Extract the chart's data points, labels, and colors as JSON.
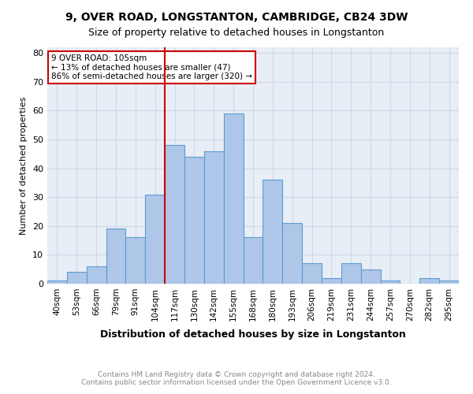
{
  "title": "9, OVER ROAD, LONGSTANTON, CAMBRIDGE, CB24 3DW",
  "subtitle": "Size of property relative to detached houses in Longstanton",
  "xlabel": "Distribution of detached houses by size in Longstanton",
  "ylabel": "Number of detached properties",
  "categories": [
    "40sqm",
    "53sqm",
    "66sqm",
    "79sqm",
    "91sqm",
    "104sqm",
    "117sqm",
    "130sqm",
    "142sqm",
    "155sqm",
    "168sqm",
    "180sqm",
    "193sqm",
    "206sqm",
    "219sqm",
    "231sqm",
    "244sqm",
    "257sqm",
    "270sqm",
    "282sqm",
    "295sqm"
  ],
  "values": [
    1,
    4,
    6,
    19,
    16,
    31,
    48,
    44,
    46,
    59,
    16,
    36,
    21,
    7,
    2,
    7,
    5,
    1,
    0,
    2,
    1
  ],
  "bar_color": "#aec6e8",
  "bar_edge_color": "#5b9bd5",
  "grid_color": "#d0d8e8",
  "background_color": "#e8eef5",
  "vline_x": 5,
  "vline_color": "#cc0000",
  "annotation_text": "9 OVER ROAD: 105sqm\n← 13% of detached houses are smaller (47)\n86% of semi-detached houses are larger (320) →",
  "annotation_box_color": "#ffffff",
  "annotation_box_edge": "#cc0000",
  "ylim": [
    0,
    82
  ],
  "yticks": [
    0,
    10,
    20,
    30,
    40,
    50,
    60,
    70,
    80
  ],
  "footer_line1": "Contains HM Land Registry data © Crown copyright and database right 2024.",
  "footer_line2": "Contains public sector information licensed under the Open Government Licence v3.0."
}
